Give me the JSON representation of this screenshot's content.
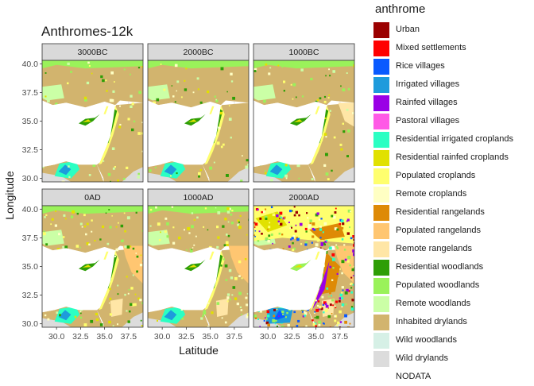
{
  "chart_data": {
    "type": "heatmap",
    "title": "Anthromes-12k",
    "xlabel": "Latitude",
    "ylabel": "Longitude",
    "xlim": [
      28.5,
      39.0
    ],
    "ylim": [
      29.7,
      40.3
    ],
    "x_ticks": [
      "30.0",
      "32.5",
      "35.0",
      "37.5"
    ],
    "y_ticks": [
      "30.0",
      "32.5",
      "35.0",
      "37.5",
      "40.0"
    ],
    "facets": [
      "3000BC",
      "2000BC",
      "1000BC",
      "0AD",
      "1000AD",
      "2000AD"
    ],
    "legend_title": "anthrome",
    "categories": [
      {
        "name": "Urban",
        "color": "#9B0000"
      },
      {
        "name": "Mixed settlements",
        "color": "#FF0000"
      },
      {
        "name": "Rice villages",
        "color": "#0A5AFF"
      },
      {
        "name": "Irrigated villages",
        "color": "#1E9BDC"
      },
      {
        "name": "Rainfed villages",
        "color": "#9A00E6"
      },
      {
        "name": "Pastoral villages",
        "color": "#FF5AE6"
      },
      {
        "name": "Residential irrigated croplands",
        "color": "#2BFFC3"
      },
      {
        "name": "Residential rainfed croplands",
        "color": "#E1E100"
      },
      {
        "name": "Populated croplands",
        "color": "#FFFF6E"
      },
      {
        "name": "Remote croplands",
        "color": "#FFFFC3"
      },
      {
        "name": "Residential rangelands",
        "color": "#DE8A06"
      },
      {
        "name": "Populated rangelands",
        "color": "#FFC671"
      },
      {
        "name": "Remote rangelands",
        "color": "#FFE6A6"
      },
      {
        "name": "Residential woodlands",
        "color": "#2E9E06"
      },
      {
        "name": "Populated woodlands",
        "color": "#9AF25A"
      },
      {
        "name": "Remote woodlands",
        "color": "#CBFFA6"
      },
      {
        "name": "Inhabited drylands",
        "color": "#D2B46E"
      },
      {
        "name": "Wild woodlands",
        "color": "#D6F0E6"
      },
      {
        "name": "Wild drylands",
        "color": "#DCDCDC"
      },
      {
        "name": "NODATA",
        "color": "#FFFFFF"
      }
    ]
  }
}
